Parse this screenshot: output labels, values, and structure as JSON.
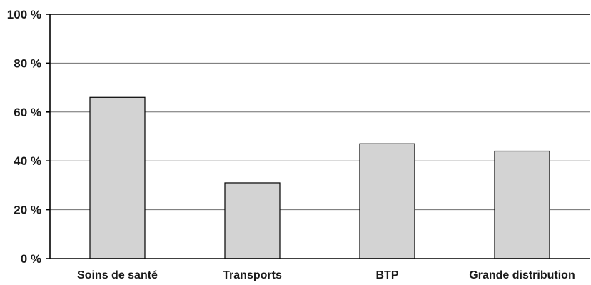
{
  "chart_data": {
    "type": "bar",
    "categories": [
      "Soins de santé",
      "Transports",
      "BTP",
      "Grande distribution"
    ],
    "values": [
      66,
      31,
      47,
      44
    ],
    "ylim": [
      0,
      100
    ],
    "yticks": [
      0,
      20,
      40,
      60,
      80,
      100
    ],
    "ytick_labels": [
      "0 %",
      "20 %",
      "40 %",
      "60 %",
      "80 %",
      "100 %"
    ],
    "grid": true,
    "legend": "none",
    "bar_color": "#d3d3d3",
    "title": "",
    "xlabel": "",
    "ylabel": ""
  }
}
